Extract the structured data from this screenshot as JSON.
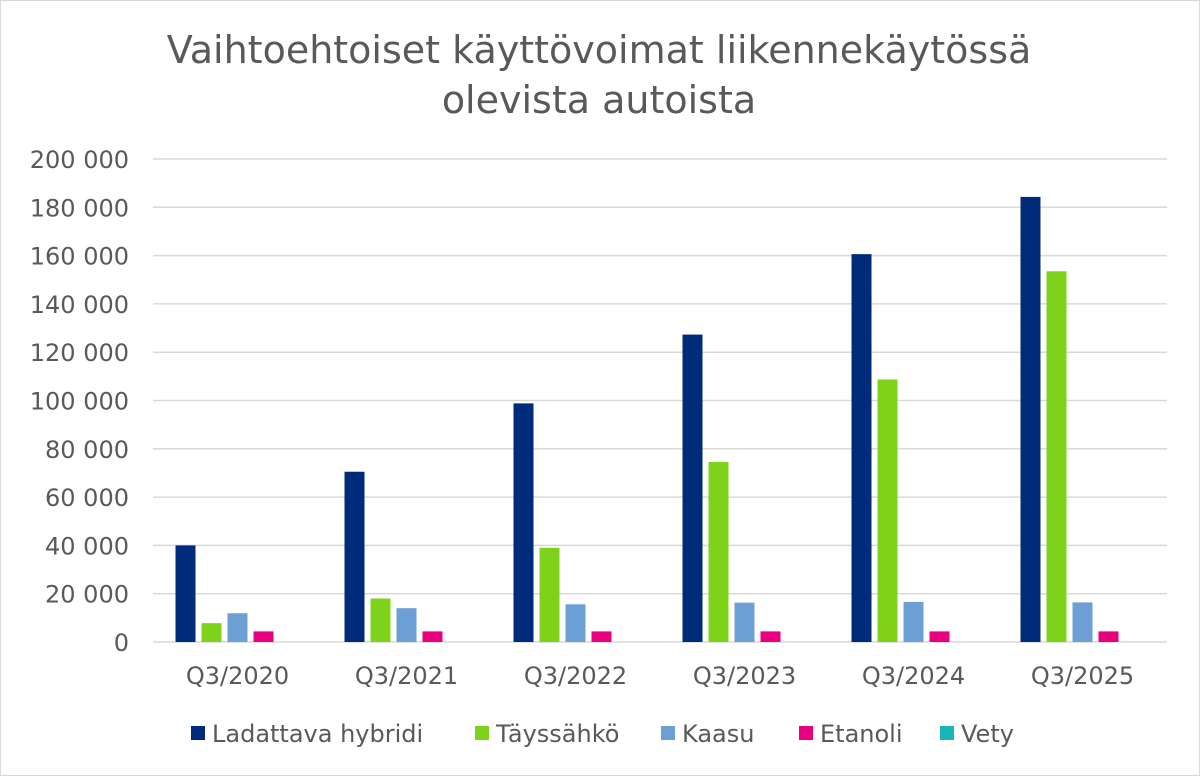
{
  "chart_data": {
    "type": "bar",
    "title_lines": [
      "Vaihtoehtoiset käyttövoimat liikennekäytössä",
      "olevista autoista"
    ],
    "xlabel": "",
    "ylabel": "",
    "categories": [
      "Q3/2020",
      "Q3/2021",
      "Q3/2022",
      "Q3/2023",
      "Q3/2024",
      "Q3/2025"
    ],
    "ylim": [
      0,
      200000
    ],
    "yticks": [
      0,
      20000,
      40000,
      60000,
      80000,
      100000,
      120000,
      140000,
      160000,
      180000,
      200000
    ],
    "ytick_labels": [
      "0",
      "20 000",
      "40 000",
      "60 000",
      "80 000",
      "100 000",
      "120 000",
      "140 000",
      "160 000",
      "180 000",
      "200 000"
    ],
    "grid": true,
    "legend_position": "bottom",
    "series": [
      {
        "name": "Ladattava hybridi",
        "color": "#002b7a",
        "values": [
          40000,
          70500,
          98800,
          127300,
          160600,
          184300
        ]
      },
      {
        "name": "Täyssähkö",
        "color": "#7ed31a",
        "values": [
          7800,
          18000,
          39000,
          74500,
          108700,
          153500
        ]
      },
      {
        "name": "Kaasu",
        "color": "#6c9fd4",
        "values": [
          11900,
          14000,
          15600,
          16300,
          16600,
          16400
        ]
      },
      {
        "name": "Etanoli",
        "color": "#e9007f",
        "values": [
          4400,
          4400,
          4400,
          4400,
          4400,
          4400
        ]
      },
      {
        "name": "Vety",
        "color": "#17b5b5",
        "values": [
          0,
          0,
          0,
          0,
          0,
          0
        ]
      }
    ]
  }
}
